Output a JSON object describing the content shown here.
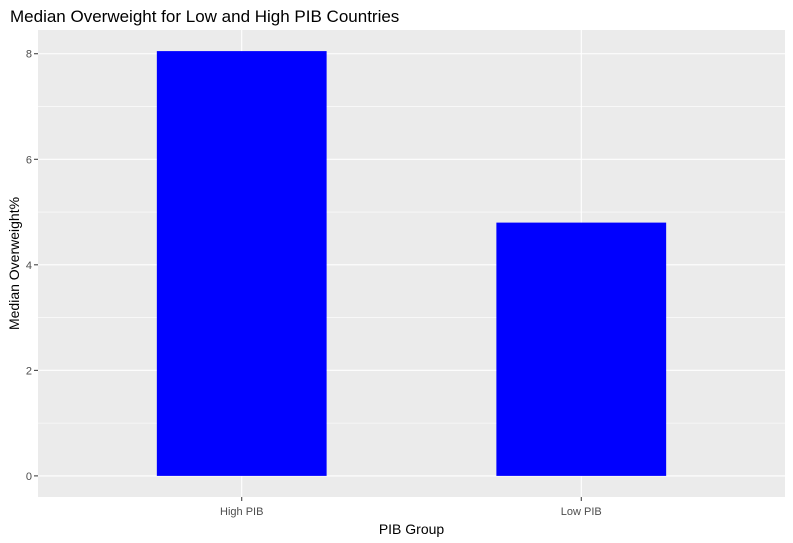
{
  "chart_data": {
    "type": "bar",
    "title": "Median Overweight for Low and High PIB Countries",
    "xlabel": "PIB Group",
    "ylabel": "Median Overweight%",
    "categories": [
      "High PIB",
      "Low PIB"
    ],
    "values": [
      8.05,
      4.8
    ],
    "ylim": [
      -0.4,
      8.45
    ],
    "yticks": [
      0,
      2,
      4,
      6,
      8
    ],
    "ytick_labels": [
      "0",
      "2",
      "4",
      "6",
      "8"
    ],
    "grid": true,
    "legend": "none",
    "bar_color": "#0000ff",
    "panel_background": "#ebebeb",
    "grid_color": "#ffffff"
  }
}
